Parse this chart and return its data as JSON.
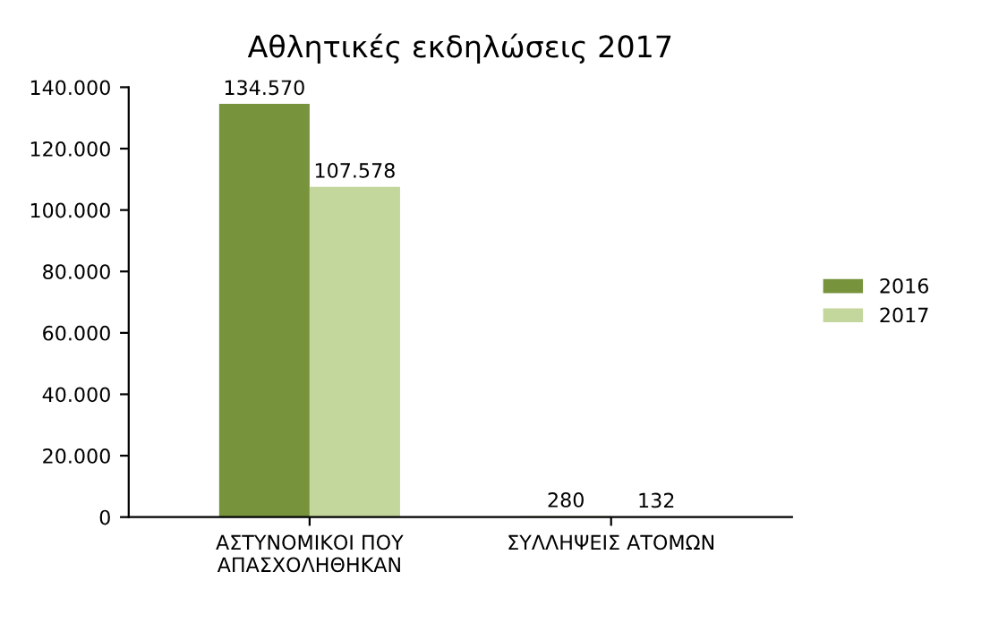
{
  "chart_data": {
    "type": "bar",
    "title": "Αθλητικές εκδηλώσεις 2017",
    "categories": [
      "ΑΣΤΥΝΟΜΙΚΟΙ ΠΟΥ\nΑΠΑΣΧΟΛΗΘΗΚΑΝ",
      "ΣΥΛΛΗΨΕΙΣ ΑΤΟΜΩΝ"
    ],
    "series": [
      {
        "name": "2016",
        "color": "#77933c",
        "values": [
          134570,
          280
        ],
        "value_labels": [
          "134.570",
          "280"
        ]
      },
      {
        "name": "2017",
        "color": "#c3d69b",
        "values": [
          107578,
          132
        ],
        "value_labels": [
          "107.578",
          "132"
        ]
      }
    ],
    "ylim": [
      0,
      140000
    ],
    "yticks": [
      0,
      {
        "value": 20000,
        "label": "20.000"
      },
      {
        "value": 40000,
        "label": "40.000"
      },
      {
        "value": 60000,
        "label": "60.000"
      },
      {
        "value": 80000,
        "label": "80.000"
      },
      {
        "value": 100000,
        "label": "100.000"
      },
      {
        "value": 120000,
        "label": "120.000"
      },
      {
        "value": 140000,
        "label": "140.000"
      }
    ],
    "legend": "right",
    "grid": false
  }
}
